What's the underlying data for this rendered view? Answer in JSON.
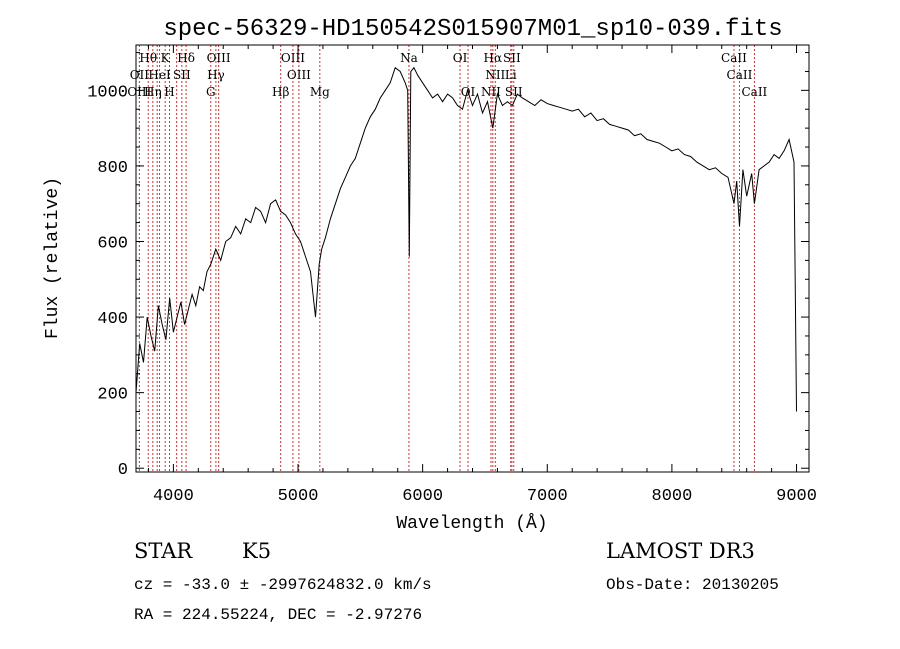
{
  "chart_data": {
    "type": "line",
    "title": "spec-56329-HD150542S015907M01_sp10-039.fits",
    "xlabel": "Wavelength (Å)",
    "ylabel": "Flux (relative)",
    "xlim": [
      3700,
      9100
    ],
    "ylim": [
      -10,
      1120
    ],
    "xticks": [
      4000,
      5000,
      6000,
      7000,
      8000,
      9000
    ],
    "yticks": [
      0,
      200,
      400,
      600,
      800,
      1000
    ],
    "grid": false,
    "series": [
      {
        "x": [
          3700,
          3730,
          3760,
          3790,
          3820,
          3850,
          3880,
          3910,
          3940,
          3970,
          4000,
          4030,
          4060,
          4090,
          4120,
          4150,
          4180,
          4210,
          4240,
          4270,
          4300,
          4340,
          4380,
          4420,
          4460,
          4500,
          4540,
          4580,
          4620,
          4660,
          4700,
          4740,
          4780,
          4820,
          4860,
          4900,
          4940,
          4980,
          5020,
          5060,
          5100,
          5140,
          5170,
          5190,
          5220,
          5260,
          5300,
          5340,
          5380,
          5420,
          5460,
          5500,
          5540,
          5580,
          5620,
          5660,
          5700,
          5740,
          5780,
          5820,
          5860,
          5880,
          5893,
          5905,
          5930,
          5960,
          6000,
          6040,
          6080,
          6120,
          6160,
          6200,
          6240,
          6280,
          6320,
          6360,
          6400,
          6440,
          6480,
          6520,
          6563,
          6600,
          6640,
          6680,
          6720,
          6760,
          6800,
          6850,
          6900,
          6950,
          7000,
          7050,
          7100,
          7150,
          7200,
          7250,
          7300,
          7350,
          7400,
          7450,
          7500,
          7550,
          7600,
          7650,
          7700,
          7750,
          7800,
          7850,
          7900,
          7950,
          8000,
          8050,
          8100,
          8150,
          8200,
          8250,
          8300,
          8350,
          8400,
          8450,
          8498,
          8520,
          8542,
          8570,
          8600,
          8640,
          8662,
          8700,
          8740,
          8780,
          8820,
          8860,
          8900,
          8940,
          8980,
          9000
        ],
        "y": [
          200,
          330,
          280,
          400,
          350,
          310,
          430,
          380,
          340,
          450,
          360,
          400,
          440,
          380,
          420,
          460,
          430,
          480,
          470,
          520,
          540,
          580,
          550,
          600,
          610,
          640,
          620,
          660,
          650,
          690,
          680,
          650,
          700,
          710,
          680,
          670,
          650,
          620,
          600,
          560,
          520,
          400,
          540,
          580,
          610,
          660,
          700,
          740,
          770,
          800,
          820,
          860,
          900,
          930,
          950,
          980,
          1000,
          1020,
          1060,
          1050,
          1020,
          1000,
          560,
          1050,
          1060,
          1040,
          1020,
          1000,
          980,
          990,
          970,
          990,
          980,
          960,
          950,
          1000,
          960,
          990,
          940,
          970,
          900,
          990,
          960,
          970,
          960,
          990,
          980,
          970,
          960,
          975,
          965,
          960,
          955,
          950,
          945,
          950,
          930,
          940,
          920,
          925,
          910,
          905,
          900,
          895,
          880,
          885,
          870,
          865,
          860,
          850,
          840,
          845,
          830,
          825,
          810,
          800,
          790,
          795,
          780,
          770,
          700,
          760,
          640,
          790,
          720,
          780,
          700,
          790,
          800,
          810,
          830,
          820,
          840,
          870,
          810,
          150
        ]
      }
    ],
    "lines": {
      "positions": [
        3727,
        3798,
        3835,
        3870,
        3889,
        3934,
        3969,
        4026,
        4068,
        4102,
        4300,
        4341,
        4363,
        4861,
        4959,
        5007,
        5175,
        5890,
        6300,
        6364,
        6548,
        6563,
        6583,
        6707,
        6716,
        6731,
        8498,
        8542,
        8662
      ],
      "labels": [
        {
          "text": "Hθ",
          "w": 3798,
          "row": 0
        },
        {
          "text": "K",
          "w": 3934,
          "row": 0
        },
        {
          "text": "Hδ",
          "w": 4102,
          "row": 0
        },
        {
          "text": "OIII",
          "w": 4363,
          "row": 0
        },
        {
          "text": "OIII",
          "w": 4959,
          "row": 0
        },
        {
          "text": "Na",
          "w": 5890,
          "row": 0
        },
        {
          "text": "OI",
          "w": 6300,
          "row": 0
        },
        {
          "text": "Hα",
          "w": 6563,
          "row": 0
        },
        {
          "text": "SII",
          "w": 6716,
          "row": 0
        },
        {
          "text": "CaII",
          "w": 8498,
          "row": 0
        },
        {
          "text": "OII",
          "w": 3727,
          "row": 1
        },
        {
          "text": "HeI",
          "w": 3889,
          "row": 1
        },
        {
          "text": "SII",
          "w": 4068,
          "row": 1
        },
        {
          "text": "Hγ",
          "w": 4341,
          "row": 1
        },
        {
          "text": "OIII",
          "w": 5007,
          "row": 1
        },
        {
          "text": "NII",
          "w": 6583,
          "row": 1
        },
        {
          "text": "Li",
          "w": 6707,
          "row": 1
        },
        {
          "text": "CaII",
          "w": 8542,
          "row": 1
        },
        {
          "text": "OIII",
          "w": 3727,
          "row": 2
        },
        {
          "text": "Hη",
          "w": 3835,
          "row": 2
        },
        {
          "text": "H",
          "w": 3969,
          "row": 2
        },
        {
          "text": "G",
          "w": 4300,
          "row": 2
        },
        {
          "text": "Hβ",
          "w": 4861,
          "row": 2
        },
        {
          "text": "Mg",
          "w": 5175,
          "row": 2
        },
        {
          "text": "OI",
          "w": 6364,
          "row": 2
        },
        {
          "text": "NII",
          "w": 6548,
          "row": 2
        },
        {
          "text": "SII",
          "w": 6731,
          "row": 2
        },
        {
          "text": "CaII",
          "w": 8662,
          "row": 2
        }
      ]
    }
  },
  "info": {
    "class": "STAR",
    "subclass": "K5",
    "survey": "LAMOST DR3",
    "cz": "cz = -33.0 ± -2997624832.0 km/s",
    "obsdate": "Obs-Date: 20130205",
    "coords": "RA = 224.55224, DEC =  -2.97276"
  },
  "colors": {
    "line_marker": "#cc3333",
    "spectrum": "#000000"
  }
}
